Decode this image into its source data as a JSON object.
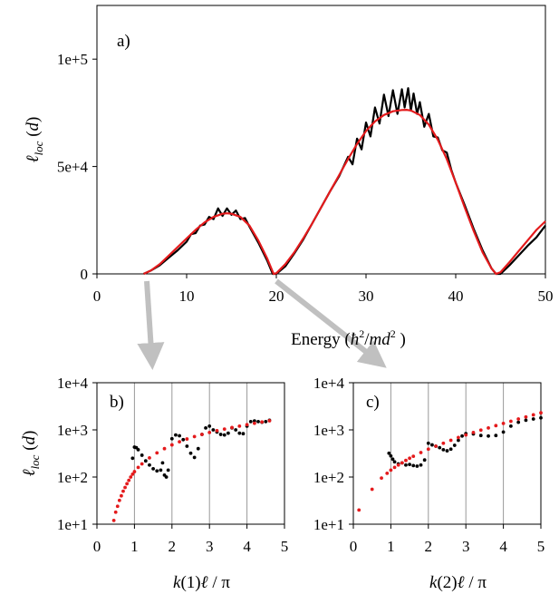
{
  "chart_data": [
    {
      "panel": "a)",
      "type": "line",
      "xlabel": "Energy (ħ²/md²)",
      "ylabel": "ℓloc (d)",
      "xlim": [
        0,
        50
      ],
      "ylim": [
        0,
        125000
      ],
      "x_ticks": [
        "0",
        "10",
        "20",
        "30",
        "40",
        "50"
      ],
      "y_ticks": [
        "0",
        "5e+4",
        "1e+5"
      ],
      "y_tick_values": [
        0,
        50000,
        100000
      ],
      "grid": false,
      "series": [
        {
          "color": "#000000",
          "x": [
            5.2,
            6,
            7,
            8,
            9,
            10,
            10.5,
            11,
            11.5,
            12,
            12.5,
            13,
            13.5,
            14,
            14.5,
            15,
            15.5,
            16,
            16.5,
            17,
            18,
            19,
            19.6,
            20,
            21,
            22,
            23,
            24,
            25,
            26,
            27,
            28,
            28.5,
            29,
            29.5,
            30,
            30.5,
            31,
            31.5,
            32,
            32.5,
            33,
            33.5,
            34,
            34.3,
            34.7,
            35,
            35.3,
            35.7,
            36,
            36.5,
            37,
            37.5,
            38,
            38.5,
            39,
            39.5,
            40,
            41,
            42,
            43,
            44,
            44.5,
            45,
            46,
            47,
            48,
            49,
            50
          ],
          "y": [
            0,
            1500,
            4000,
            7500,
            11000,
            15000,
            18500,
            19000,
            22500,
            23000,
            26500,
            25500,
            30500,
            27000,
            30500,
            27500,
            29500,
            25500,
            26000,
            22000,
            14500,
            6000,
            0,
            0,
            3500,
            9500,
            16000,
            23500,
            31000,
            38500,
            45500,
            54500,
            51000,
            63000,
            58000,
            70500,
            64000,
            77500,
            70000,
            83500,
            73500,
            85500,
            74500,
            86000,
            77500,
            86500,
            76000,
            84000,
            74500,
            80000,
            68500,
            74500,
            64000,
            63500,
            57500,
            56500,
            48500,
            42500,
            32000,
            21000,
            11000,
            2500,
            0,
            0,
            4000,
            8500,
            13000,
            17000,
            22500
          ]
        },
        {
          "color": "#e41a1c",
          "x": [
            5.2,
            6,
            7,
            8,
            9,
            10,
            11,
            12,
            13,
            14,
            14.5,
            15,
            16,
            17,
            18,
            19,
            19.7,
            20,
            21,
            22,
            23,
            24,
            25,
            26,
            27,
            28,
            29,
            30,
            31,
            32,
            33,
            34,
            34.5,
            35,
            36,
            37,
            38,
            39,
            40,
            41,
            42,
            43,
            44,
            44.5,
            45,
            46,
            47,
            48,
            49,
            50
          ],
          "y": [
            0,
            1500,
            4500,
            8500,
            12500,
            16500,
            20500,
            24000,
            26500,
            28000,
            28200,
            28000,
            26500,
            22500,
            15500,
            7000,
            0,
            300,
            4500,
            10000,
            16500,
            23500,
            31000,
            38500,
            46000,
            53500,
            60500,
            66500,
            71000,
            74000,
            75700,
            76300,
            76400,
            76100,
            74000,
            69500,
            62500,
            53500,
            42500,
            31000,
            20000,
            10000,
            2500,
            0,
            800,
            5500,
            10500,
            15500,
            20500,
            24500
          ]
        }
      ],
      "annotations": [
        "a)"
      ]
    },
    {
      "panel": "b)",
      "type": "scatter",
      "xlabel": "k(1)ℓ / π",
      "ylabel": "ℓloc (d)",
      "xlim": [
        0,
        5
      ],
      "ylim": [
        10,
        10000
      ],
      "yscale": "log",
      "x_ticks": [
        "0",
        "1",
        "2",
        "3",
        "4",
        "5"
      ],
      "y_ticks": [
        "1e+1",
        "1e+2",
        "1e+3",
        "1e+4"
      ],
      "y_tick_values": [
        10,
        100,
        1000,
        10000
      ],
      "grid": "vertical",
      "series": [
        {
          "color": "#000000",
          "x": [
            0.95,
            1.0,
            1.05,
            1.1,
            1.2,
            1.3,
            1.4,
            1.5,
            1.6,
            1.7,
            1.75,
            1.8,
            1.85,
            1.9,
            2.0,
            2.1,
            2.2,
            2.3,
            2.4,
            2.5,
            2.6,
            2.7,
            2.8,
            2.9,
            3.0,
            3.1,
            3.2,
            3.3,
            3.4,
            3.5,
            3.6,
            3.7,
            3.8,
            3.9,
            4.0,
            4.1,
            4.2,
            4.3,
            4.4,
            4.5,
            4.6
          ],
          "y": [
            250,
            430,
            420,
            380,
            290,
            220,
            180,
            150,
            135,
            140,
            200,
            110,
            100,
            140,
            650,
            780,
            750,
            620,
            450,
            320,
            260,
            400,
            800,
            1100,
            1200,
            1000,
            900,
            800,
            780,
            850,
            1100,
            1000,
            850,
            830,
            1200,
            1500,
            1550,
            1500,
            1450,
            1500,
            1600
          ]
        },
        {
          "color": "#e41a1c",
          "x": [
            0.45,
            0.5,
            0.55,
            0.6,
            0.65,
            0.7,
            0.75,
            0.8,
            0.85,
            0.9,
            0.95,
            1.0,
            1.1,
            1.2,
            1.4,
            1.6,
            1.8,
            2.0,
            2.2,
            2.4,
            2.6,
            2.8,
            3.0,
            3.2,
            3.4,
            3.6,
            3.8,
            4.0,
            4.2,
            4.4,
            4.6
          ],
          "y": [
            12,
            18,
            24,
            32,
            40,
            50,
            60,
            72,
            85,
            100,
            115,
            130,
            160,
            190,
            255,
            325,
            400,
            480,
            560,
            640,
            720,
            800,
            880,
            960,
            1040,
            1120,
            1200,
            1290,
            1380,
            1470,
            1560
          ]
        }
      ],
      "annotations": [
        "b)"
      ]
    },
    {
      "panel": "c)",
      "type": "scatter",
      "xlabel": "k(2)ℓ / π",
      "ylabel": "",
      "xlim": [
        0,
        5
      ],
      "ylim": [
        10,
        10000
      ],
      "yscale": "log",
      "x_ticks": [
        "0",
        "1",
        "2",
        "3",
        "4",
        "5"
      ],
      "y_ticks": [
        "1e+1",
        "1e+2",
        "1e+3",
        "1e+4"
      ],
      "y_tick_values": [
        10,
        100,
        1000,
        10000
      ],
      "grid": "vertical",
      "series": [
        {
          "color": "#000000",
          "x": [
            0.95,
            1.0,
            1.05,
            1.1,
            1.2,
            1.3,
            1.4,
            1.5,
            1.6,
            1.7,
            1.8,
            1.9,
            2.0,
            2.1,
            2.2,
            2.3,
            2.4,
            2.5,
            2.6,
            2.7,
            2.8,
            2.9,
            3.0,
            3.2,
            3.4,
            3.6,
            3.8,
            4.0,
            4.2,
            4.4,
            4.6,
            4.8,
            5.0
          ],
          "y": [
            320,
            280,
            240,
            210,
            190,
            200,
            180,
            185,
            175,
            170,
            180,
            230,
            520,
            480,
            450,
            420,
            380,
            360,
            390,
            470,
            600,
            740,
            830,
            820,
            760,
            740,
            760,
            900,
            1200,
            1450,
            1600,
            1700,
            1800
          ]
        },
        {
          "color": "#e41a1c",
          "x": [
            0.15,
            0.5,
            0.75,
            0.9,
            1.0,
            1.1,
            1.2,
            1.3,
            1.4,
            1.5,
            1.6,
            1.8,
            2.0,
            2.2,
            2.4,
            2.6,
            2.8,
            3.0,
            3.2,
            3.4,
            3.6,
            3.8,
            4.0,
            4.2,
            4.4,
            4.6,
            4.8,
            5.0
          ],
          "y": [
            20,
            55,
            95,
            120,
            140,
            160,
            180,
            200,
            225,
            250,
            275,
            330,
            390,
            450,
            520,
            600,
            690,
            780,
            880,
            990,
            1100,
            1230,
            1370,
            1520,
            1700,
            1880,
            2080,
            2300
          ]
        }
      ],
      "annotations": [
        "c)"
      ]
    }
  ]
}
